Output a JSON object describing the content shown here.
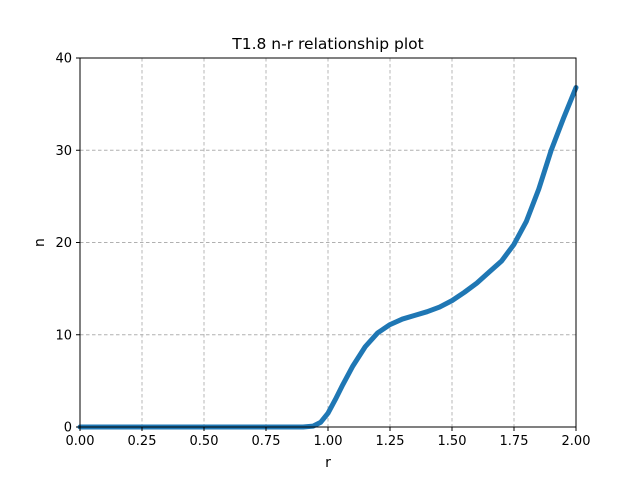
{
  "chart_data": {
    "type": "line",
    "title": "T1.8 n-r relationship plot",
    "xlabel": "r",
    "ylabel": "n",
    "xlim": [
      0,
      2
    ],
    "ylim": [
      0,
      40
    ],
    "xticks": [
      "0.00",
      "0.25",
      "0.50",
      "0.75",
      "1.00",
      "1.25",
      "1.50",
      "1.75",
      "2.00"
    ],
    "yticks": [
      "0",
      "10",
      "20",
      "30",
      "40"
    ],
    "grid": true,
    "series": [
      {
        "color": "#1f77b4",
        "x": [
          0.0,
          0.25,
          0.5,
          0.75,
          0.9,
          0.94,
          0.97,
          1.0,
          1.03,
          1.06,
          1.1,
          1.15,
          1.2,
          1.25,
          1.3,
          1.35,
          1.4,
          1.45,
          1.5,
          1.55,
          1.6,
          1.65,
          1.7,
          1.75,
          1.8,
          1.85,
          1.9,
          1.95,
          2.0
        ],
        "y": [
          0.0,
          0.0,
          0.0,
          0.0,
          0.0,
          0.1,
          0.5,
          1.5,
          3.0,
          4.6,
          6.6,
          8.7,
          10.2,
          11.1,
          11.7,
          12.1,
          12.5,
          13.0,
          13.7,
          14.6,
          15.6,
          16.8,
          18.0,
          19.8,
          22.3,
          25.8,
          30.0,
          33.5,
          36.8
        ]
      }
    ]
  }
}
